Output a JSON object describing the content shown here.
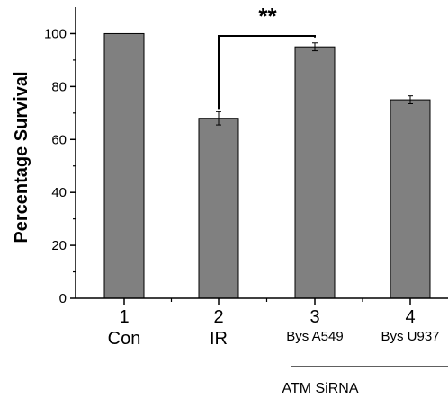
{
  "chart_data": {
    "type": "bar",
    "ylabel": "Percentage Survival",
    "ylim": [
      0,
      110
    ],
    "yticks": [
      "0",
      "20",
      "40",
      "60",
      "80",
      "100"
    ],
    "categories": [
      {
        "num": "1",
        "label": "Con",
        "sub": false
      },
      {
        "num": "2",
        "label": "IR",
        "sub": false
      },
      {
        "num": "3",
        "label": "Bys A549",
        "sub": true
      },
      {
        "num": "4",
        "label": "Bys U937",
        "sub": true
      }
    ],
    "values": [
      100,
      68,
      95,
      75
    ],
    "errors": [
      0,
      2.5,
      1.5,
      1.5
    ],
    "bar_color": "#808080",
    "significance": {
      "label": "**",
      "from_index": 1,
      "to_index": 2
    },
    "group_label": {
      "label": "ATM SiRNA",
      "from_index": 2,
      "to_index": 3
    }
  }
}
